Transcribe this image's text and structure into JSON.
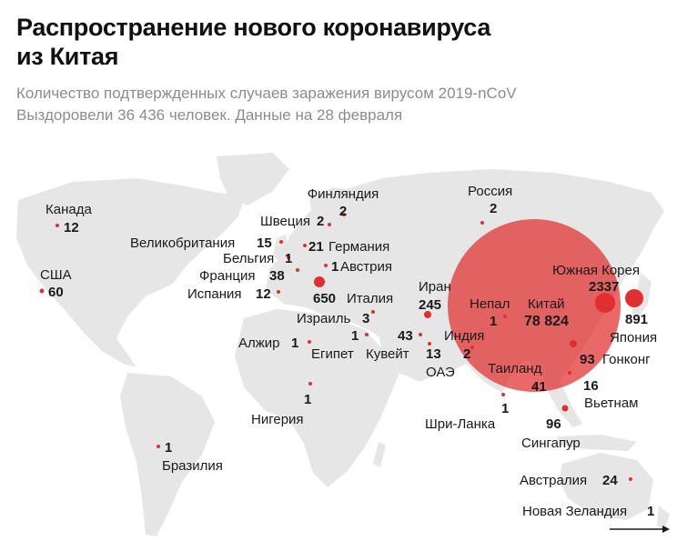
{
  "title_line1": "Распространение нового коронавируса",
  "title_line2": "из Китая",
  "subtitle_line1": "Количество подтвержденных случаев заражения вирусом 2019-nCoV",
  "subtitle_line2": "Выздоровели 36 436 человек. Данные на 28 февраля",
  "colors": {
    "bubble": "#e12e2e",
    "land": "#e6e6e6",
    "text": "#1a1a1a",
    "subtitle": "#8c8c8c"
  },
  "countries": {
    "canada": {
      "name": "Канада",
      "count": "12"
    },
    "usa": {
      "name": "США",
      "count": "60"
    },
    "brazil": {
      "name": "Бразилия",
      "count": "1"
    },
    "finland": {
      "name": "Финляндия",
      "count": "2"
    },
    "sweden": {
      "name": "Швеция",
      "count": "2"
    },
    "uk": {
      "name": "Великобритания",
      "count": "15"
    },
    "germany": {
      "name": "Германия",
      "count": "21"
    },
    "belgium": {
      "name": "Бельгия",
      "count": "1"
    },
    "austria": {
      "name": "Австрия",
      "count": "1"
    },
    "france": {
      "name": "Франция",
      "count": "38"
    },
    "spain": {
      "name": "Испания",
      "count": "12"
    },
    "italy": {
      "name": "Италия",
      "count": "650"
    },
    "israel": {
      "name": "Израиль",
      "count": "3"
    },
    "algeria": {
      "name": "Алжир",
      "count": "1"
    },
    "egypt": {
      "name": "Египет",
      "count": "1"
    },
    "kuwait": {
      "name": "Кувейт",
      "count": "43"
    },
    "uae": {
      "name": "ОАЭ",
      "count": "13"
    },
    "nigeria": {
      "name": "Нигерия",
      "count": "1"
    },
    "iran": {
      "name": "Иран",
      "count": "245"
    },
    "india": {
      "name": "Индия",
      "count": "2"
    },
    "russia": {
      "name": "Россия",
      "count": "2"
    },
    "nepal": {
      "name": "Непал",
      "count": "1"
    },
    "china": {
      "name": "Китай",
      "count": "78 824"
    },
    "south_korea": {
      "name": "Южная Корея",
      "count": "2337"
    },
    "japan": {
      "name": "Япония",
      "count": "891"
    },
    "hong_kong": {
      "name": "Гонконг",
      "count": "93"
    },
    "thailand": {
      "name": "Таиланд",
      "count": "41"
    },
    "vietnam": {
      "name": "Вьетнам",
      "count": "16"
    },
    "sri_lanka": {
      "name": "Шри-Ланка",
      "count": "1"
    },
    "singapore": {
      "name": "Сингапур",
      "count": "96"
    },
    "australia": {
      "name": "Австралия",
      "count": "24"
    },
    "new_zealand": {
      "name": "Новая Зеландия",
      "count": "1"
    }
  }
}
